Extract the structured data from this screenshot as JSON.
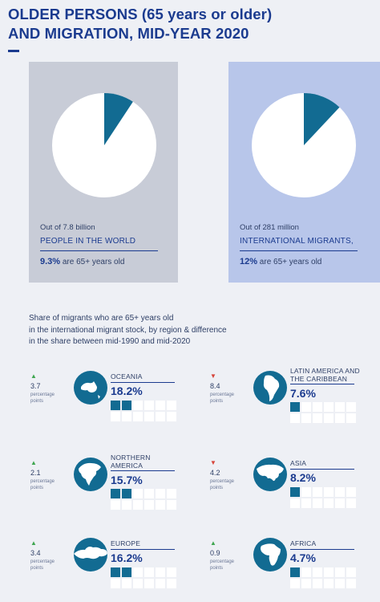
{
  "title": {
    "line1": "OLDER PERSONS (65 years or older)",
    "line2": "AND MIGRATION, MID-YEAR 2020"
  },
  "colors": {
    "accent": "#126b92",
    "title": "#1b3b8f",
    "up": "#3fa650",
    "down": "#d6443a"
  },
  "panels": {
    "world": {
      "pre": "Out of 7.8 billion",
      "label": "PEOPLE IN THE WORLD",
      "value": "9.3%",
      "suffix": " are 65+ years old"
    },
    "migrants": {
      "pre": "Out of 281 million",
      "label": "INTERNATIONAL MIGRANTS,",
      "value": "12%",
      "suffix": " are 65+ years old"
    }
  },
  "description": {
    "line1": "Share of migrants who are 65+ years old",
    "line2": "in the international migrant stock, by region & difference",
    "line3": "in the share between mid-1990 and mid-2020"
  },
  "regions": [
    {
      "name1": "OCEANIA",
      "name2": "",
      "value": "18.2%",
      "diff": "3.7",
      "unit1": "percentage",
      "unit2": "points",
      "arrow": "▲",
      "icon": "oceania-globe-icon"
    },
    {
      "name1": "LATIN AMERICA AND",
      "name2": "THE CARIBBEAN",
      "value": "7.6%",
      "diff": "8.4",
      "unit1": "percentage",
      "unit2": "points",
      "arrow": "▼",
      "icon": "latin-america-globe-icon"
    },
    {
      "name1": "NORTHERN",
      "name2": "AMERICA",
      "value": "15.7%",
      "diff": "2.1",
      "unit1": "percentage",
      "unit2": "points",
      "arrow": "▲",
      "icon": "north-america-globe-icon"
    },
    {
      "name1": "ASIA",
      "name2": "",
      "value": "8.2%",
      "diff": "4.2",
      "unit1": "percentage",
      "unit2": "points",
      "arrow": "▼",
      "icon": "asia-globe-icon"
    },
    {
      "name1": "EUROPE",
      "name2": "",
      "value": "16.2%",
      "diff": "3.4",
      "unit1": "percentage",
      "unit2": "points",
      "arrow": "▲",
      "icon": "europe-globe-icon"
    },
    {
      "name1": "AFRICA",
      "name2": "",
      "value": "4.7%",
      "diff": "0.9",
      "unit1": "percentage",
      "unit2": "points",
      "arrow": "▲",
      "icon": "africa-globe-icon"
    }
  ],
  "chart_data": [
    {
      "type": "pie",
      "categories": [
        "65+ years old",
        "Other"
      ],
      "values": [
        9.3,
        90.7
      ]
    },
    {
      "type": "pie",
      "categories": [
        "65+ years old",
        "Other"
      ],
      "values": [
        12,
        88
      ]
    },
    {
      "type": "table",
      "categories": [
        "OCEANIA",
        "LATIN AMERICA AND THE CARIBBEAN",
        "NORTHERN AMERICA",
        "ASIA",
        "EUROPE",
        "AFRICA"
      ],
      "series": [
        {
          "values": [
            18.2,
            7.6,
            15.7,
            8.2,
            16.2,
            4.7
          ]
        },
        {
          "values": [
            3.7,
            -8.4,
            2.1,
            -4.2,
            3.4,
            0.9
          ]
        }
      ]
    }
  ]
}
